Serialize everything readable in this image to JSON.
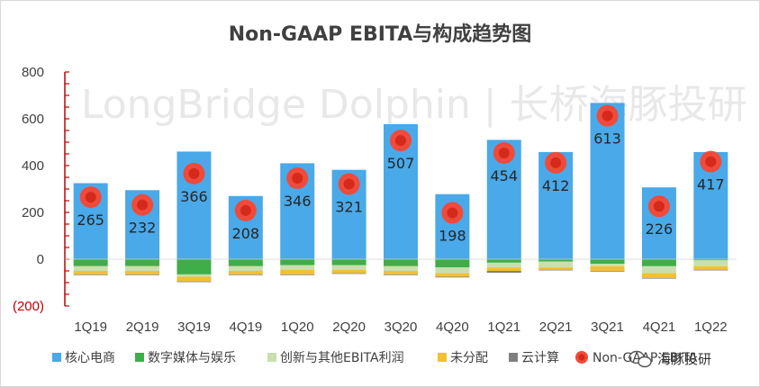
{
  "colors": {
    "core_ecommerce": "#4aa9e8",
    "digital_media": "#3fae49",
    "innovation": "#c9dfb0",
    "unallocated": "#f2c031",
    "cloud": "#7f7f7f",
    "ebita_dot_outer": "#f04a3a",
    "ebita_dot_inner": "#d42a1c",
    "axis_red": "#c00000"
  },
  "watermark": "LongBridge Dolphin | 长桥海豚投研",
  "brand_label": "海豚投研",
  "chart_data": {
    "type": "bar",
    "stacked": true,
    "title": "Non-GAAP EBITA与构成趋势图",
    "categories": [
      "1Q19",
      "2Q19",
      "3Q19",
      "4Q19",
      "1Q20",
      "2Q20",
      "3Q20",
      "4Q20",
      "1Q21",
      "2Q21",
      "3Q21",
      "4Q21",
      "1Q22"
    ],
    "ylim": [
      -200,
      800
    ],
    "yticks": [
      {
        "value": 800,
        "label": "800"
      },
      {
        "value": 600,
        "label": "600"
      },
      {
        "value": 400,
        "label": "400"
      },
      {
        "value": 200,
        "label": "200"
      },
      {
        "value": 0,
        "label": "0"
      },
      {
        "value": -200,
        "label": "(200)"
      }
    ],
    "series": [
      {
        "key": "core_ecommerce",
        "name": "核心电商",
        "values": [
          325,
          295,
          460,
          270,
          410,
          382,
          577,
          278,
          510,
          458,
          668,
          307,
          458
        ]
      },
      {
        "key": "digital_media",
        "name": "数字媒体与娱乐",
        "values": [
          -30,
          -30,
          -65,
          -30,
          -25,
          -25,
          -30,
          -35,
          -15,
          -10,
          -20,
          -30,
          -5
        ]
      },
      {
        "key": "innovation",
        "name": "创新与其他EBITA利润",
        "values": [
          -20,
          -20,
          -10,
          -20,
          -20,
          -20,
          -20,
          -25,
          -20,
          -25,
          -10,
          -30,
          -25
        ]
      },
      {
        "key": "unallocated",
        "name": "未分配",
        "values": [
          -15,
          -15,
          -20,
          -15,
          -20,
          -15,
          -15,
          -15,
          -15,
          -10,
          -20,
          -20,
          -15
        ]
      },
      {
        "key": "cloud",
        "name": "云计算",
        "values": [
          -3,
          -3,
          -3,
          -3,
          -3,
          -3,
          -3,
          -3,
          -8,
          -3,
          -3,
          -3,
          -3
        ]
      }
    ],
    "line": {
      "name": "Non-GAAP EBITA",
      "values": [
        265,
        232,
        366,
        208,
        346,
        321,
        507,
        198,
        454,
        412,
        613,
        226,
        417
      ],
      "labels": [
        "265",
        "232",
        "366",
        "208",
        "346",
        "321",
        "507",
        "198",
        "454",
        "412",
        "613",
        "226",
        "417"
      ]
    },
    "legend": "bottom"
  }
}
